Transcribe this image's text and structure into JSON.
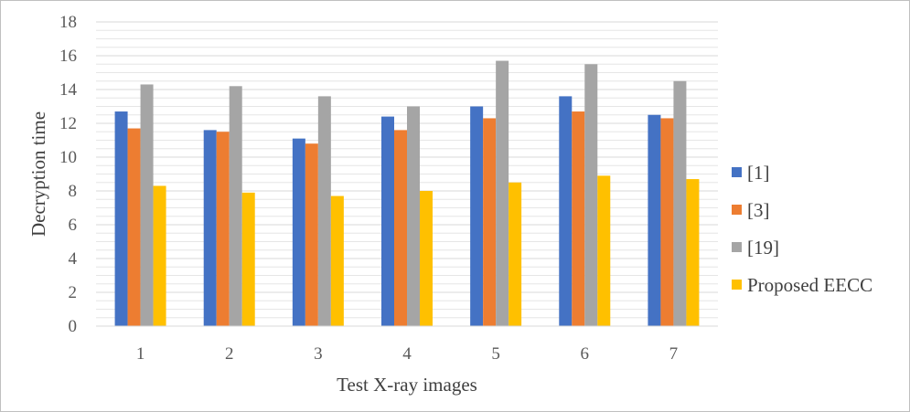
{
  "chart_data": {
    "type": "bar",
    "title": "",
    "xlabel": "Test X-ray images",
    "ylabel": "Decryption time",
    "categories": [
      "1",
      "2",
      "3",
      "4",
      "5",
      "6",
      "7"
    ],
    "ylim": [
      0,
      18
    ],
    "yticks": [
      0,
      2,
      4,
      6,
      8,
      10,
      12,
      14,
      16,
      18
    ],
    "grid": true,
    "legend_position": "right",
    "series": [
      {
        "name": "[1]",
        "color": "#4472c4",
        "values": [
          12.7,
          11.6,
          11.1,
          12.4,
          13.0,
          13.6,
          12.5
        ]
      },
      {
        "name": "[3]",
        "color": "#ed7d31",
        "values": [
          11.7,
          11.5,
          10.8,
          11.6,
          12.3,
          12.7,
          12.3
        ]
      },
      {
        "name": "[19]",
        "color": "#a5a5a5",
        "values": [
          14.3,
          14.2,
          13.6,
          13.0,
          15.7,
          15.5,
          14.5
        ]
      },
      {
        "name": "Proposed EECC",
        "color": "#ffc000",
        "values": [
          8.3,
          7.9,
          7.7,
          8.0,
          8.5,
          8.9,
          8.7
        ]
      }
    ]
  }
}
